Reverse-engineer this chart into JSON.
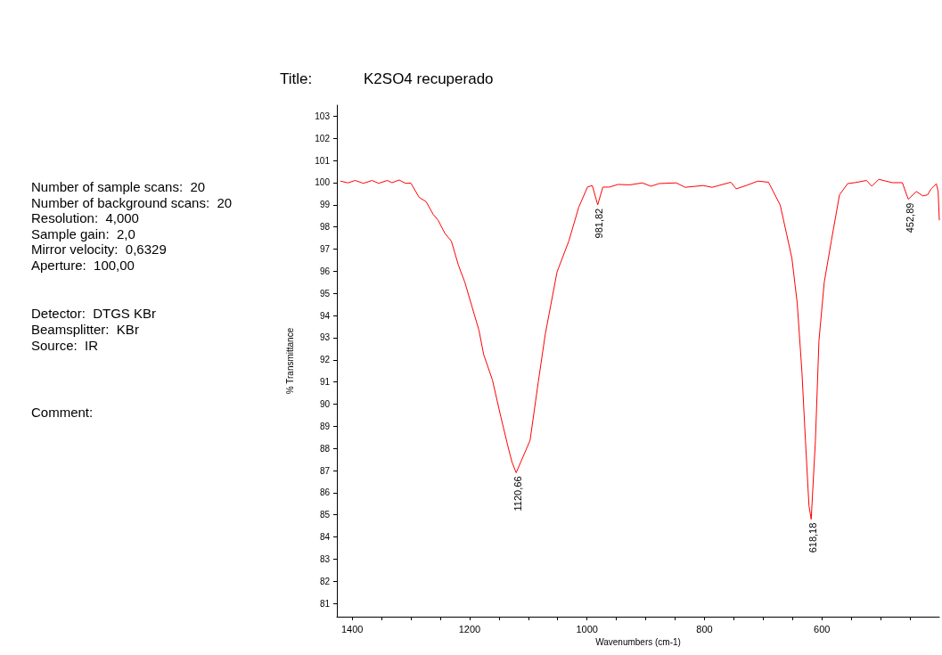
{
  "chart_data": {
    "type": "line",
    "title": "K2SO4 recuperado",
    "xlabel": "Wavenumbers (cm-1)",
    "ylabel": "% Transmittance",
    "annotations": [
      "Title:",
      "Number of sample scans:  20",
      "Number of background scans:  20",
      "Resolution:  4,000",
      "Sample gain:  2,0",
      "Mirror velocity:  0,6329",
      "Aperture:  100,00",
      "Detector:  DTGS KBr",
      "Beamsplitter:  KBr",
      "Source:  IR",
      "Comment:",
      {
        "text": "1120,66",
        "x": 1120.66,
        "y": 86.9
      },
      {
        "text": "981,82",
        "x": 981.82,
        "y": 99.0
      },
      {
        "text": "618,18",
        "x": 618.18,
        "y": 84.8
      },
      {
        "text": "452,89",
        "x": 452.89,
        "y": 99.25
      }
    ],
    "x": [
      1420,
      1407,
      1395,
      1381,
      1366,
      1355,
      1340,
      1332,
      1320,
      1309,
      1300,
      1286,
      1274,
      1262,
      1254,
      1242,
      1231,
      1219,
      1208,
      1196,
      1184,
      1176,
      1161,
      1147,
      1135,
      1128,
      1120.66,
      1097,
      1083,
      1071,
      1051,
      1031,
      1014,
      999,
      991,
      981.82,
      973,
      962,
      947,
      927,
      906,
      891,
      877,
      848,
      833,
      802,
      787,
      755,
      746,
      729,
      709,
      691,
      671,
      660,
      651,
      642,
      634,
      628,
      622,
      618.18,
      611,
      605,
      596,
      584,
      570,
      556,
      544,
      524,
      515,
      503,
      480,
      463,
      452.89,
      439,
      428,
      420,
      414,
      405,
      402,
      400
    ],
    "series": [
      {
        "color": "#ff0000",
        "values": [
          100.07,
          99.99,
          100.1,
          99.97,
          100.1,
          99.97,
          100.1,
          100.0,
          100.12,
          99.97,
          99.98,
          99.34,
          99.14,
          98.57,
          98.32,
          97.71,
          97.36,
          96.27,
          95.5,
          94.41,
          93.33,
          92.24,
          91.08,
          89.45,
          88.13,
          87.4,
          86.9,
          88.36,
          91.0,
          93.17,
          95.97,
          97.36,
          98.9,
          99.81,
          99.87,
          99.0,
          99.8,
          99.8,
          99.92,
          99.9,
          99.99,
          99.84,
          99.96,
          99.99,
          99.79,
          99.87,
          99.79,
          100.02,
          99.72,
          99.87,
          100.07,
          100.02,
          98.99,
          97.67,
          96.58,
          94.56,
          91.46,
          88.36,
          85.41,
          84.8,
          88.36,
          92.86,
          95.5,
          97.36,
          99.45,
          99.96,
          100.0,
          100.1,
          99.84,
          100.15,
          100.0,
          100.0,
          99.25,
          99.6,
          99.4,
          99.45,
          99.72,
          99.95,
          99.6,
          98.3
        ]
      }
    ],
    "xlim": [
      1426,
      400
    ],
    "xticks": [
      1400,
      {
        "value": 1350,
        "label": null
      },
      1200,
      {
        "value": 1300,
        "label": null
      },
      {
        "value": 1250,
        "label": null
      },
      {
        "value": 1150,
        "label": null
      },
      {
        "value": 1100,
        "label": null
      },
      {
        "value": 1050,
        "label": null
      },
      1000,
      {
        "value": 950,
        "label": null
      },
      {
        "value": 900,
        "label": null
      },
      {
        "value": 850,
        "label": null
      },
      800,
      {
        "value": 750,
        "label": null
      },
      {
        "value": 700,
        "label": null
      },
      {
        "value": 650,
        "label": null
      },
      600,
      {
        "value": 550,
        "label": null
      },
      {
        "value": 500,
        "label": null
      },
      {
        "value": 450,
        "label": null
      }
    ],
    "ylim": [
      80.4,
      103.5
    ],
    "yticks": [
      81,
      82,
      83,
      84,
      85,
      86,
      87,
      88,
      89,
      90,
      91,
      92,
      93,
      94,
      95,
      96,
      97,
      98,
      99,
      100,
      101,
      102,
      103
    ],
    "grid": false,
    "marker": "none",
    "line_style": "solid"
  }
}
